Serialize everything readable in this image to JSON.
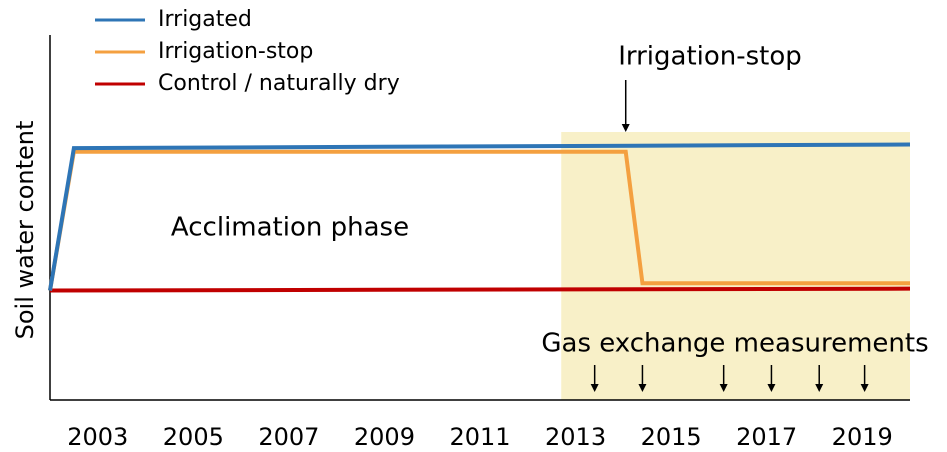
{
  "chart_data": {
    "type": "line",
    "y_label": "Soil water content",
    "xlim": [
      2002,
      2020
    ],
    "ylim": [
      0,
      100
    ],
    "xticks": [
      2003,
      2005,
      2007,
      2009,
      2011,
      2013,
      2015,
      2017,
      2019
    ],
    "series": [
      {
        "name": "Irrigated",
        "color": "#2e75b6",
        "x": [
          2002,
          2002.5,
          2020
        ],
        "values": [
          30,
          69,
          70
        ]
      },
      {
        "name": "Irrigation-stop",
        "color": "#f4a040",
        "x": [
          2002,
          2002.5,
          2014.05,
          2014.4,
          2020
        ],
        "values": [
          30,
          68,
          68,
          32,
          32
        ]
      },
      {
        "name": "Control / naturally dry",
        "color": "#c00000",
        "x": [
          2002,
          2020
        ],
        "values": [
          30,
          30.5
        ]
      }
    ],
    "highlight": {
      "x": [
        2012.7,
        2020
      ],
      "color": "#f8f0c8"
    },
    "annotations": {
      "stop_label": "Irrigation-stop",
      "stop_x": 2014.05,
      "phase_label": "Acclimation phase",
      "measurement_label": "Gas exchange measurements",
      "measurement_x": [
        2013.4,
        2014.4,
        2016.1,
        2017.1,
        2018.1,
        2019.05
      ]
    }
  }
}
